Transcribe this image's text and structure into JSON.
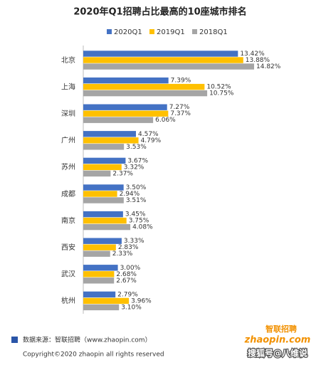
{
  "chart_data": {
    "type": "hbar",
    "title": "2020年Q1招聘占比最高的10座城市排名",
    "categories": [
      "北京",
      "上海",
      "深圳",
      "广州",
      "苏州",
      "成都",
      "南京",
      "西安",
      "武汉",
      "杭州"
    ],
    "series": [
      {
        "name": "2020Q1",
        "color": "#4472c4",
        "values": [
          13.42,
          7.39,
          7.27,
          4.57,
          3.67,
          3.5,
          3.45,
          3.33,
          3.0,
          2.79
        ],
        "value_labels": [
          "13.42%",
          "7.39%",
          "7.27%",
          "4.57%",
          "3.67%",
          "3.50%",
          "3.45%",
          "3.33%",
          "3.00%",
          "2.79%"
        ]
      },
      {
        "name": "2019Q1",
        "color": "#ffc000",
        "values": [
          13.88,
          10.52,
          7.37,
          4.79,
          3.32,
          2.94,
          3.75,
          2.83,
          2.68,
          3.96
        ],
        "value_labels": [
          "13.88%",
          "10.52%",
          "7.37%",
          "4.79%",
          "3.32%",
          "2.94%",
          "3.75%",
          "2.83%",
          "2.68%",
          "3.96%"
        ]
      },
      {
        "name": "2018Q1",
        "color": "#a5a5a5",
        "values": [
          14.82,
          10.75,
          6.06,
          3.53,
          2.37,
          3.51,
          4.08,
          2.33,
          2.67,
          3.1
        ],
        "value_labels": [
          "14.82%",
          "10.75%",
          "6.06%",
          "3.53%",
          "2.37%",
          "3.51%",
          "4.08%",
          "2.33%",
          "2.67%",
          "3.10%"
        ]
      }
    ],
    "legend": "top",
    "source": "数据来源：智联招聘（www.zhaopin.com）",
    "copyright": "Copyright©2020 zhaopin all rights reserved",
    "logo": {
      "name": "智联招聘",
      "site": "zhaopin.com"
    },
    "watermark": "搜狐号@八维说"
  }
}
